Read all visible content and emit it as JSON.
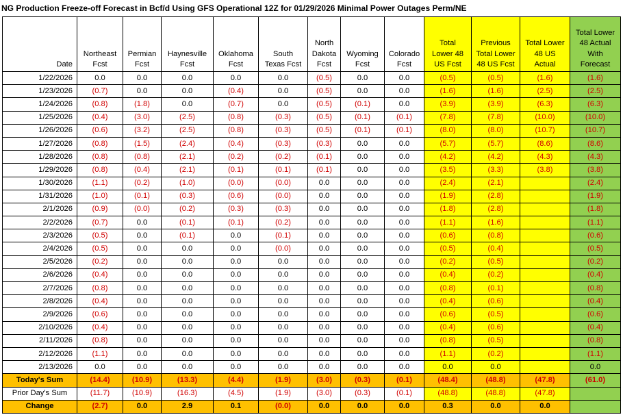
{
  "title": "NG Production Freeze-off Forecast in Bcf/d Using GFS Operational 12Z for 01/29/2026 Minimal Power Outages Perm/NE",
  "colors": {
    "yellow": "#ffff00",
    "green": "#92d050",
    "orange": "#ffc000",
    "negative_text": "#d00000"
  },
  "headers": [
    [
      "",
      "",
      "",
      "",
      "Date"
    ],
    [
      "",
      "",
      "Northeast",
      "Fcst"
    ],
    [
      "",
      "",
      "Permian",
      "Fcst"
    ],
    [
      "",
      "",
      "Haynesville",
      "Fcst"
    ],
    [
      "",
      "",
      "Oklahoma",
      "Fcst"
    ],
    [
      "",
      "",
      "South",
      "Texas Fcst"
    ],
    [
      "",
      "North",
      "Dakota",
      "Fcst"
    ],
    [
      "",
      "",
      "Wyoming",
      "Fcst"
    ],
    [
      "",
      "",
      "Colorado",
      "Fcst"
    ],
    [
      "",
      "Total",
      "Lower 48",
      "US Fcst"
    ],
    [
      "",
      "Previous",
      "Total Lower",
      "48 US Fcst"
    ],
    [
      "",
      "Total Lower",
      "48 US",
      "Actual"
    ],
    [
      "Total Lower",
      "48 Actual",
      "With",
      "Forecast"
    ]
  ],
  "rows": [
    [
      "1/22/2026",
      "0.0",
      "0.0",
      "0.0",
      "0.0",
      "0.0",
      "(0.5)",
      "0.0",
      "0.0",
      "(0.5)",
      "(0.5)",
      "(1.6)",
      "(1.6)"
    ],
    [
      "1/23/2026",
      "(0.7)",
      "0.0",
      "0.0",
      "(0.4)",
      "0.0",
      "(0.5)",
      "0.0",
      "0.0",
      "(1.6)",
      "(1.6)",
      "(2.5)",
      "(2.5)"
    ],
    [
      "1/24/2026",
      "(0.8)",
      "(1.8)",
      "0.0",
      "(0.7)",
      "0.0",
      "(0.5)",
      "(0.1)",
      "0.0",
      "(3.9)",
      "(3.9)",
      "(6.3)",
      "(6.3)"
    ],
    [
      "1/25/2026",
      "(0.4)",
      "(3.0)",
      "(2.5)",
      "(0.8)",
      "(0.3)",
      "(0.5)",
      "(0.1)",
      "(0.1)",
      "(7.8)",
      "(7.8)",
      "(10.0)",
      "(10.0)"
    ],
    [
      "1/26/2026",
      "(0.6)",
      "(3.2)",
      "(2.5)",
      "(0.8)",
      "(0.3)",
      "(0.5)",
      "(0.1)",
      "(0.1)",
      "(8.0)",
      "(8.0)",
      "(10.7)",
      "(10.7)"
    ],
    [
      "1/27/2026",
      "(0.8)",
      "(1.5)",
      "(2.4)",
      "(0.4)",
      "(0.3)",
      "(0.3)",
      "0.0",
      "0.0",
      "(5.7)",
      "(5.7)",
      "(8.6)",
      "(8.6)"
    ],
    [
      "1/28/2026",
      "(0.8)",
      "(0.8)",
      "(2.1)",
      "(0.2)",
      "(0.2)",
      "(0.1)",
      "0.0",
      "0.0",
      "(4.2)",
      "(4.2)",
      "(4.3)",
      "(4.3)"
    ],
    [
      "1/29/2026",
      "(0.8)",
      "(0.4)",
      "(2.1)",
      "(0.1)",
      "(0.1)",
      "(0.1)",
      "0.0",
      "0.0",
      "(3.5)",
      "(3.3)",
      "(3.8)",
      "(3.8)"
    ],
    [
      "1/30/2026",
      "(1.1)",
      "(0.2)",
      "(1.0)",
      "(0.0)",
      "(0.0)",
      "0.0",
      "0.0",
      "0.0",
      "(2.4)",
      "(2.1)",
      "",
      "(2.4)"
    ],
    [
      "1/31/2026",
      "(1.0)",
      "(0.1)",
      "(0.3)",
      "(0.6)",
      "(0.0)",
      "0.0",
      "0.0",
      "0.0",
      "(1.9)",
      "(2.8)",
      "",
      "(1.9)"
    ],
    [
      "2/1/2026",
      "(0.9)",
      "(0.0)",
      "(0.2)",
      "(0.3)",
      "(0.3)",
      "0.0",
      "0.0",
      "0.0",
      "(1.8)",
      "(2.8)",
      "",
      "(1.8)"
    ],
    [
      "2/2/2026",
      "(0.7)",
      "0.0",
      "(0.1)",
      "(0.1)",
      "(0.2)",
      "0.0",
      "0.0",
      "0.0",
      "(1.1)",
      "(1.6)",
      "",
      "(1.1)"
    ],
    [
      "2/3/2026",
      "(0.5)",
      "0.0",
      "(0.1)",
      "0.0",
      "(0.1)",
      "0.0",
      "0.0",
      "0.0",
      "(0.6)",
      "(0.8)",
      "",
      "(0.6)"
    ],
    [
      "2/4/2026",
      "(0.5)",
      "0.0",
      "0.0",
      "0.0",
      "(0.0)",
      "0.0",
      "0.0",
      "0.0",
      "(0.5)",
      "(0.4)",
      "",
      "(0.5)"
    ],
    [
      "2/5/2026",
      "(0.2)",
      "0.0",
      "0.0",
      "0.0",
      "0.0",
      "0.0",
      "0.0",
      "0.0",
      "(0.2)",
      "(0.5)",
      "",
      "(0.2)"
    ],
    [
      "2/6/2026",
      "(0.4)",
      "0.0",
      "0.0",
      "0.0",
      "0.0",
      "0.0",
      "0.0",
      "0.0",
      "(0.4)",
      "(0.2)",
      "",
      "(0.4)"
    ],
    [
      "2/7/2026",
      "(0.8)",
      "0.0",
      "0.0",
      "0.0",
      "0.0",
      "0.0",
      "0.0",
      "0.0",
      "(0.8)",
      "(0.1)",
      "",
      "(0.8)"
    ],
    [
      "2/8/2026",
      "(0.4)",
      "0.0",
      "0.0",
      "0.0",
      "0.0",
      "0.0",
      "0.0",
      "0.0",
      "(0.4)",
      "(0.6)",
      "",
      "(0.4)"
    ],
    [
      "2/9/2026",
      "(0.6)",
      "0.0",
      "0.0",
      "0.0",
      "0.0",
      "0.0",
      "0.0",
      "0.0",
      "(0.6)",
      "(0.5)",
      "",
      "(0.6)"
    ],
    [
      "2/10/2026",
      "(0.4)",
      "0.0",
      "0.0",
      "0.0",
      "0.0",
      "0.0",
      "0.0",
      "0.0",
      "(0.4)",
      "(0.6)",
      "",
      "(0.4)"
    ],
    [
      "2/11/2026",
      "(0.8)",
      "0.0",
      "0.0",
      "0.0",
      "0.0",
      "0.0",
      "0.0",
      "0.0",
      "(0.8)",
      "(0.5)",
      "",
      "(0.8)"
    ],
    [
      "2/12/2026",
      "(1.1)",
      "0.0",
      "0.0",
      "0.0",
      "0.0",
      "0.0",
      "0.0",
      "0.0",
      "(1.1)",
      "(0.2)",
      "",
      "(1.1)"
    ],
    [
      "2/13/2026",
      "0.0",
      "0.0",
      "0.0",
      "0.0",
      "0.0",
      "0.0",
      "0.0",
      "0.0",
      "0.0",
      "0.0",
      "",
      "0.0"
    ]
  ],
  "summary": {
    "today": [
      "Today's Sum",
      "(14.4)",
      "(10.9)",
      "(13.3)",
      "(4.4)",
      "(1.9)",
      "(3.0)",
      "(0.3)",
      "(0.1)",
      "(48.4)",
      "(48.8)",
      "(47.8)",
      "(61.0)"
    ],
    "prior": [
      "Prior Day's Sum",
      "(11.7)",
      "(10.9)",
      "(16.3)",
      "(4.5)",
      "(1.9)",
      "(3.0)",
      "(0.3)",
      "(0.1)",
      "(48.8)",
      "(48.8)",
      "(47.8)",
      ""
    ],
    "change": [
      "Change",
      "(2.7)",
      "0.0",
      "2.9",
      "0.1",
      "(0.0)",
      "0.0",
      "0.0",
      "0.0",
      "0.3",
      "0.0",
      "0.0",
      ""
    ]
  }
}
